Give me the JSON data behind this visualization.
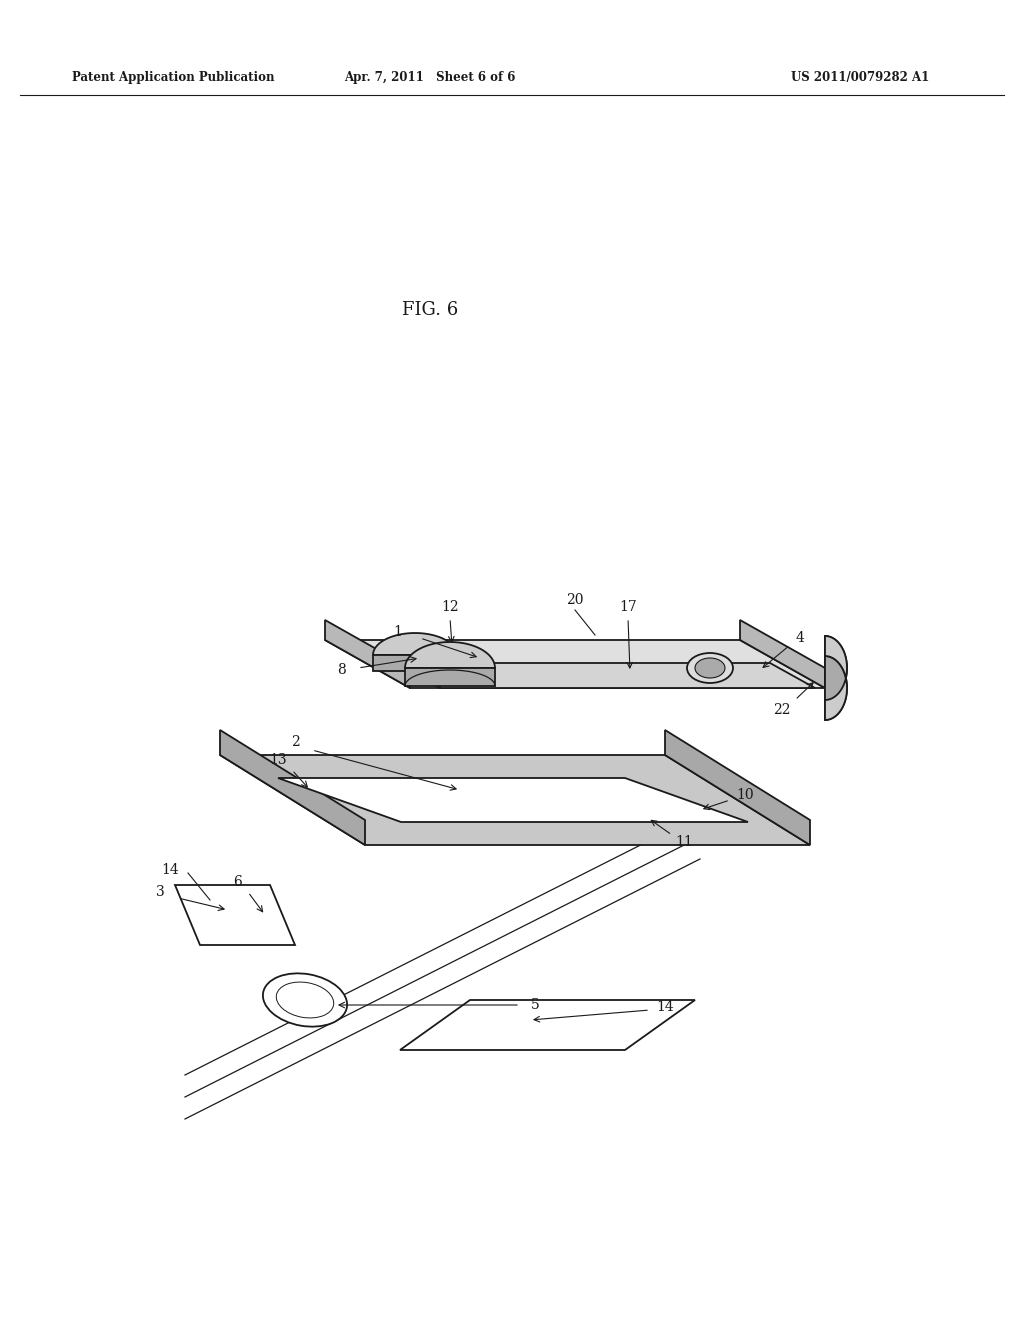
{
  "header_left": "Patent Application Publication",
  "header_center": "Apr. 7, 2011   Sheet 6 of 6",
  "header_right": "US 2011/0079282 A1",
  "fig_label": "FIG. 6",
  "bg_color": "#ffffff",
  "line_color": "#1a1a1a",
  "gray_fill": "#c8c8c8",
  "light_gray": "#e8e8e8",
  "dark_gray": "#888888"
}
